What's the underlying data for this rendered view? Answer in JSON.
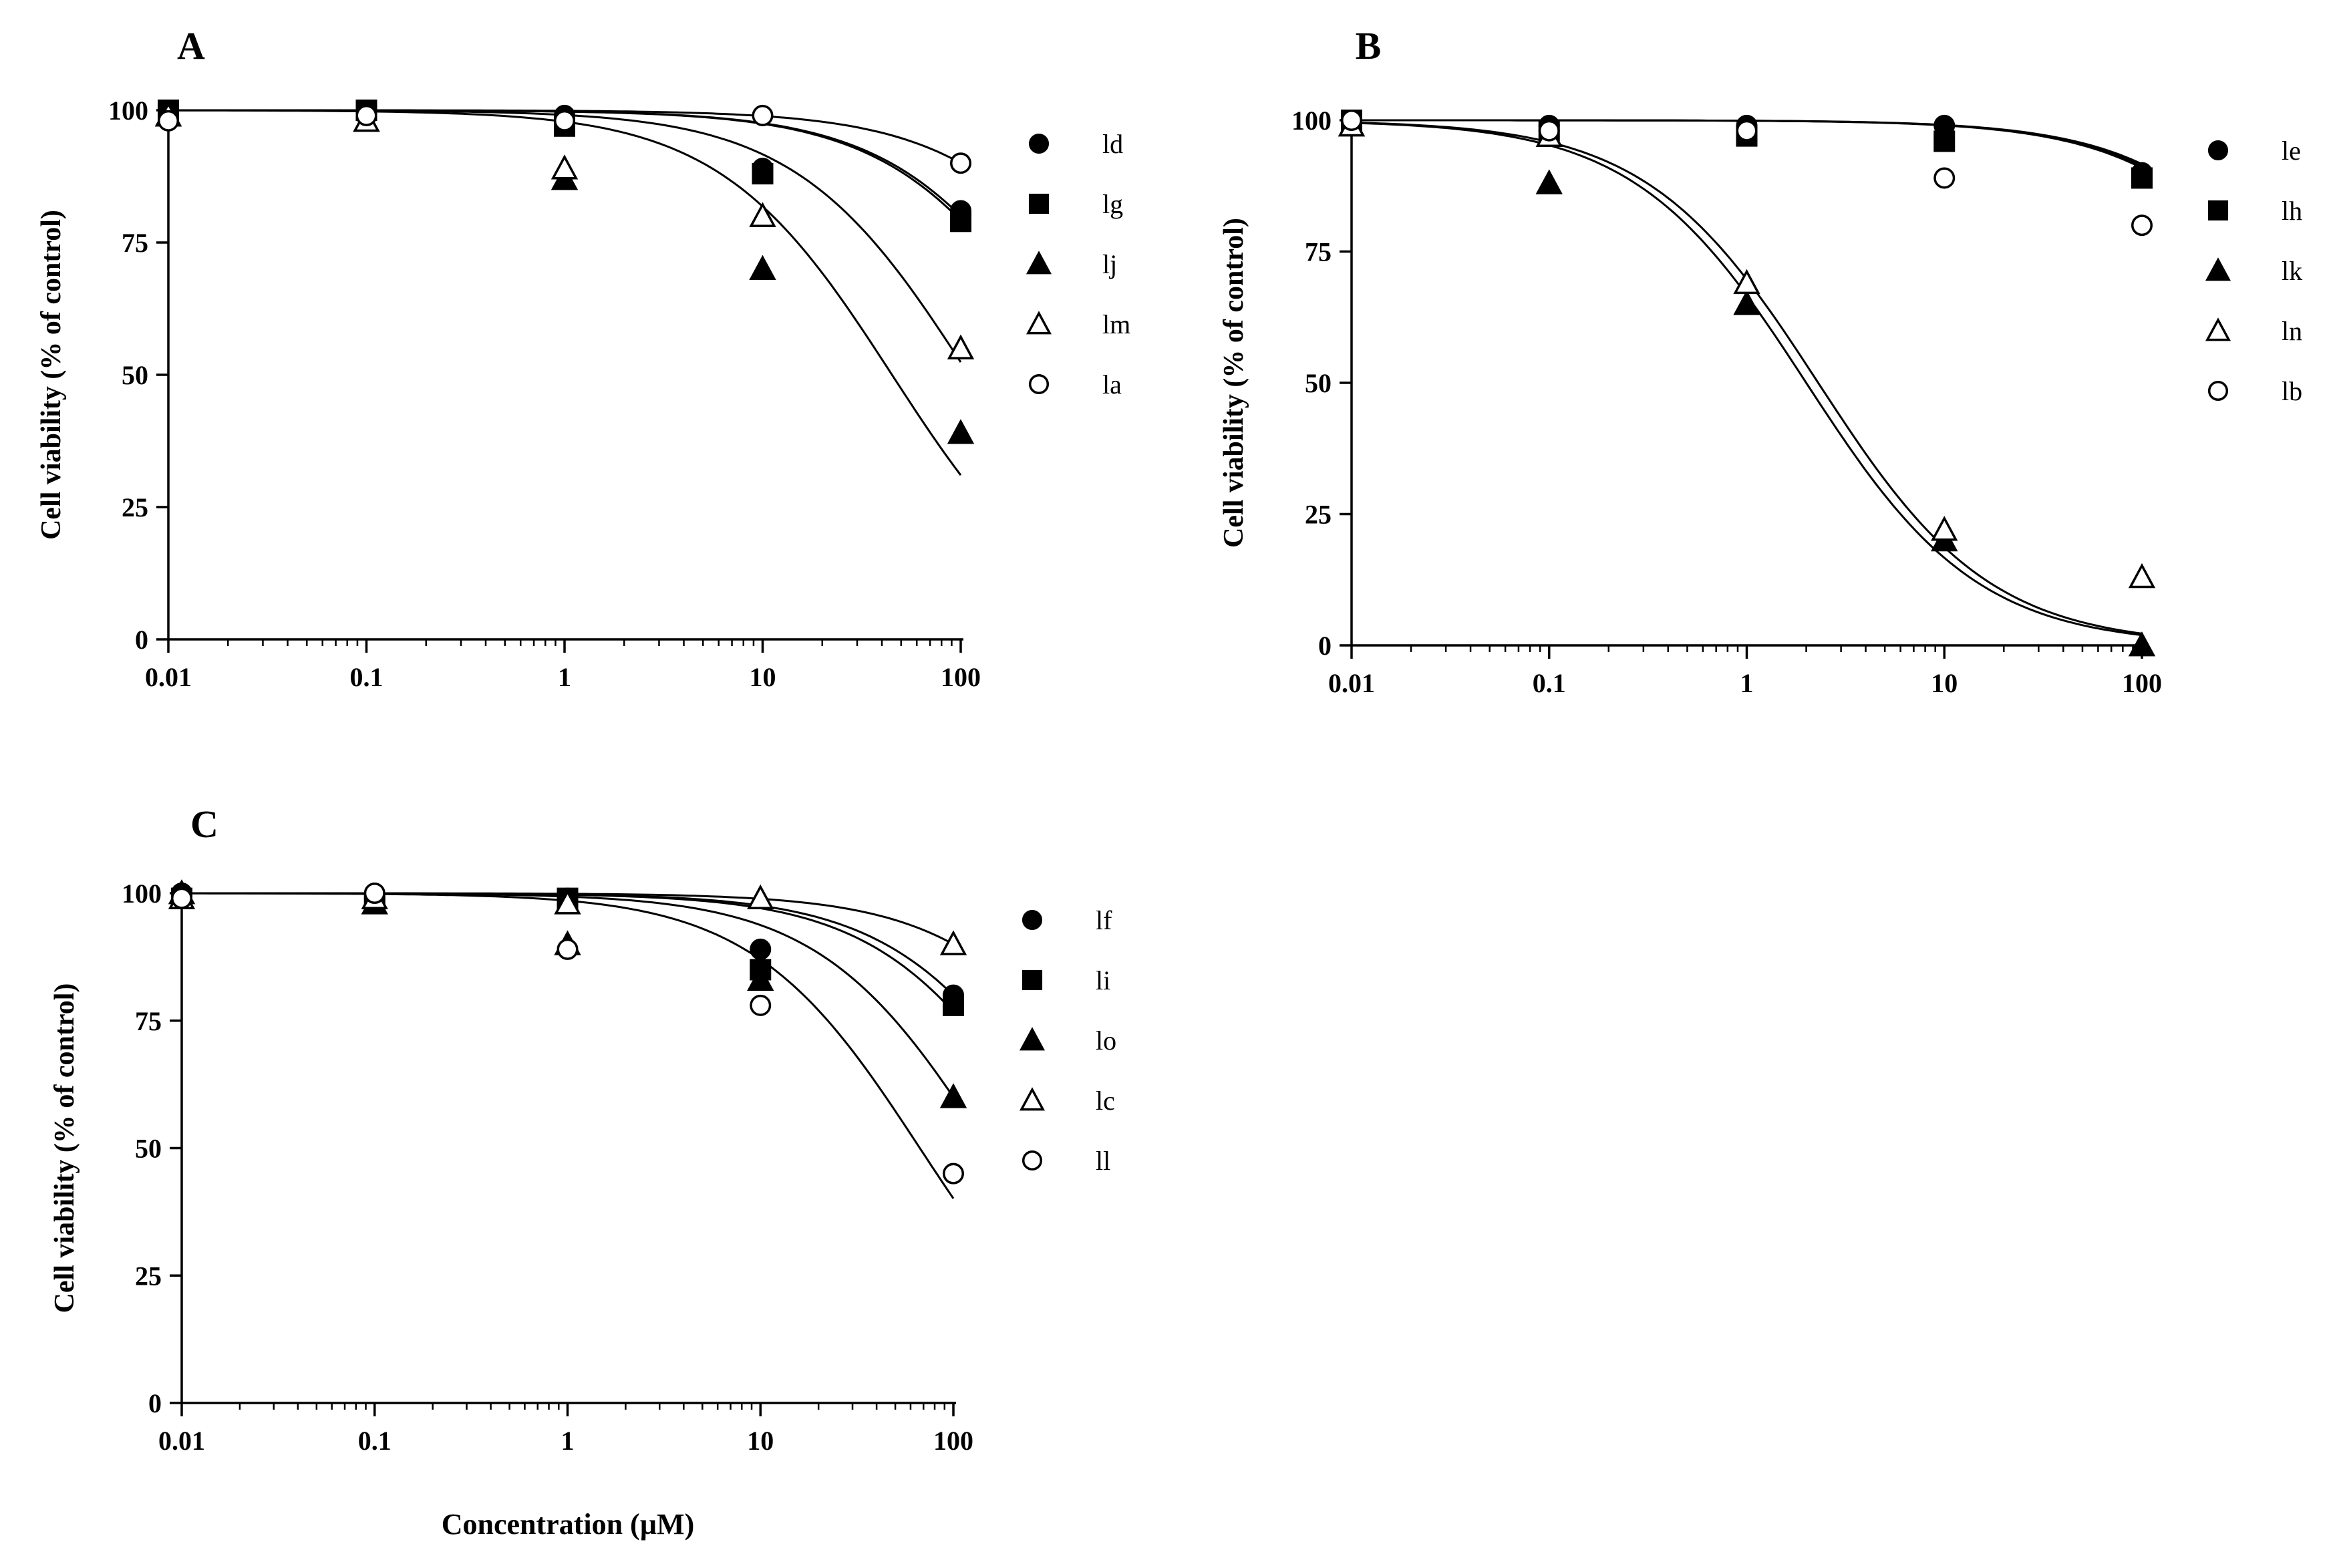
{
  "xlabel": "Concentration (µM)",
  "chart_data": [
    {
      "panel": "A",
      "type": "scatter",
      "ylabel": "Cell viability (% of control)",
      "x_scale": "log",
      "xlim": [
        0.01,
        100
      ],
      "ylim": [
        0,
        100
      ],
      "x_ticks": [
        "0.01",
        "0.1",
        "1",
        "10",
        "100"
      ],
      "y_ticks": [
        "0",
        "25",
        "50",
        "75",
        "100"
      ],
      "grid": false,
      "legend_position": "right",
      "x": [
        0.01,
        0.1,
        1,
        10,
        100
      ],
      "series": [
        {
          "name": "ld",
          "marker": "filled-circle",
          "values": [
            100,
            99,
            99,
            89,
            81
          ],
          "fit": {
            "ec50": 400,
            "hill": 1
          }
        },
        {
          "name": "lg",
          "marker": "filled-square",
          "values": [
            100,
            100,
            97,
            88,
            79
          ],
          "fit": {
            "ec50": 380,
            "hill": 1
          }
        },
        {
          "name": "lj",
          "marker": "filled-triangle",
          "values": [
            99,
            98,
            87,
            70,
            39
          ],
          "fit": {
            "ec50": 45,
            "hill": 1
          }
        },
        {
          "name": "lm",
          "marker": "open-triangle",
          "values": [
            99,
            98,
            89,
            80,
            55
          ],
          "fit": {
            "ec50": 110,
            "hill": 1
          }
        },
        {
          "name": "la",
          "marker": "open-circle",
          "values": [
            98,
            99,
            98,
            99,
            90
          ],
          "fit": {
            "ec50": 900,
            "hill": 1
          }
        }
      ]
    },
    {
      "panel": "B",
      "type": "scatter",
      "ylabel": "Cell viability (% of control)",
      "x_scale": "log",
      "xlim": [
        0.01,
        100
      ],
      "ylim": [
        0,
        100
      ],
      "x_ticks": [
        "0.01",
        "0.1",
        "1",
        "10",
        "100"
      ],
      "y_ticks": [
        "0",
        "25",
        "50",
        "75",
        "100"
      ],
      "grid": false,
      "legend_position": "right",
      "x": [
        0.01,
        0.1,
        1,
        10,
        100
      ],
      "series": [
        {
          "name": "le",
          "marker": "filled-circle",
          "values": [
            100,
            99,
            99,
            99,
            90
          ],
          "fit": {
            "ec50": 1100,
            "hill": 1
          }
        },
        {
          "name": "lh",
          "marker": "filled-square",
          "values": [
            100,
            98,
            97,
            96,
            89
          ],
          "fit": {
            "ec50": 1000,
            "hill": 1
          }
        },
        {
          "name": "lk",
          "marker": "filled-triangle",
          "values": [
            99,
            88,
            65,
            20,
            0
          ],
          "fit": {
            "ec50": 2.0,
            "hill": 1
          }
        },
        {
          "name": "ln",
          "marker": "open-triangle",
          "values": [
            99,
            97,
            69,
            22,
            13
          ],
          "fit": {
            "ec50": 2.3,
            "hill": 1
          }
        },
        {
          "name": "lb",
          "marker": "open-circle",
          "values": [
            100,
            98,
            98,
            89,
            80
          ],
          "fit": {
            "ec50": 1050,
            "hill": 1
          }
        }
      ]
    },
    {
      "panel": "C",
      "type": "scatter",
      "ylabel": "Cell viability (% of control)",
      "x_scale": "log",
      "xlim": [
        0.01,
        100
      ],
      "ylim": [
        0,
        100
      ],
      "x_ticks": [
        "0.01",
        "0.1",
        "1",
        "10",
        "100"
      ],
      "y_ticks": [
        "0",
        "25",
        "50",
        "75",
        "100"
      ],
      "grid": false,
      "legend_position": "right",
      "x": [
        0.01,
        0.1,
        1,
        10,
        100
      ],
      "series": [
        {
          "name": "lf",
          "marker": "filled-circle",
          "values": [
            100,
            99,
            99,
            89,
            80
          ],
          "fit": {
            "ec50": 400,
            "hill": 1
          }
        },
        {
          "name": "li",
          "marker": "filled-square",
          "values": [
            99,
            98,
            99,
            85,
            78
          ],
          "fit": {
            "ec50": 330,
            "hill": 1
          }
        },
        {
          "name": "lo",
          "marker": "filled-triangle",
          "values": [
            100,
            98,
            90,
            83,
            60
          ],
          "fit": {
            "ec50": 150,
            "hill": 1
          }
        },
        {
          "name": "lc",
          "marker": "open-triangle",
          "values": [
            99,
            99,
            98,
            99,
            90
          ],
          "fit": {
            "ec50": 900,
            "hill": 1
          }
        },
        {
          "name": "ll",
          "marker": "open-circle",
          "values": [
            99,
            100,
            89,
            78,
            45
          ],
          "fit": {
            "ec50": 67,
            "hill": 1
          }
        }
      ]
    }
  ]
}
